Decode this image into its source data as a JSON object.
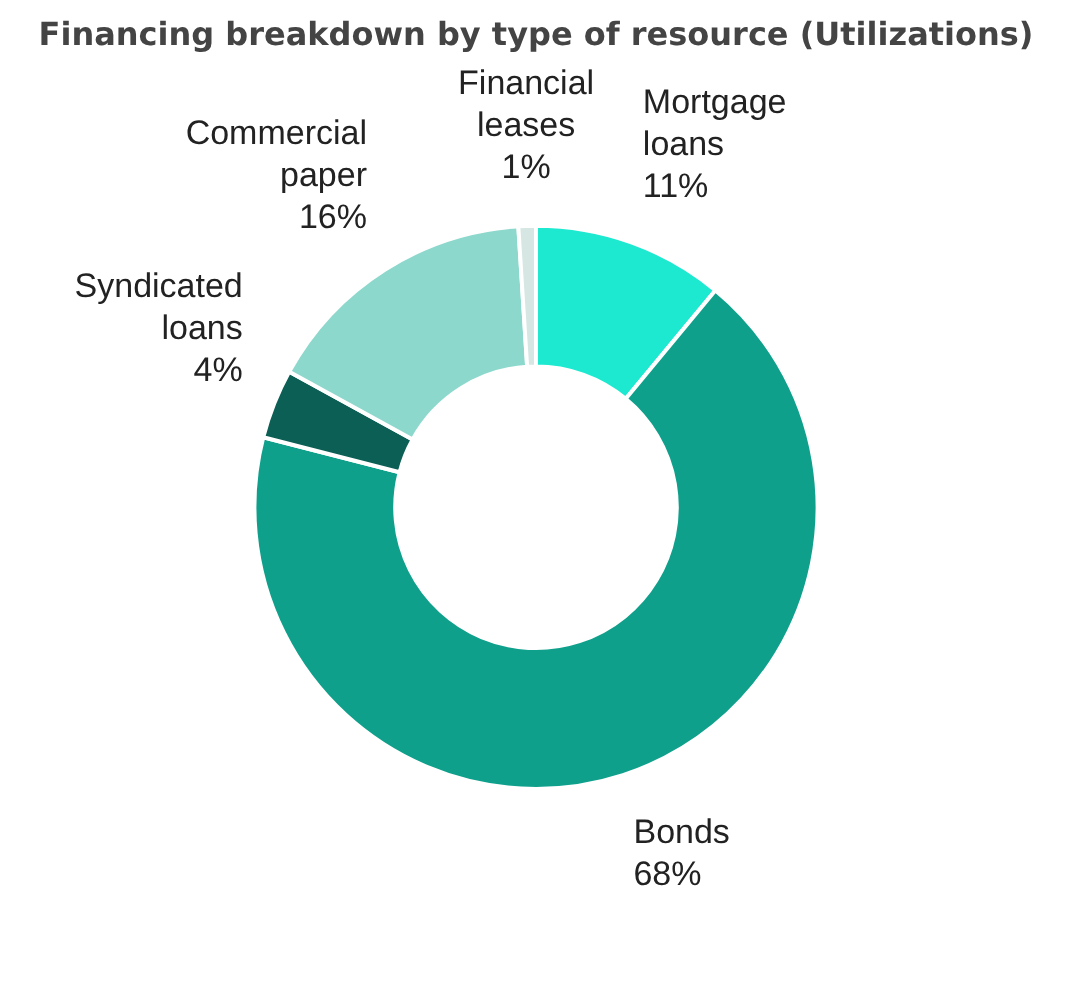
{
  "chart_data": {
    "type": "donut",
    "title": "Financing breakdown by type of resource (Utilizations)",
    "categories": [
      "Mortgage loans",
      "Bonds",
      "Syndicated loans",
      "Commercial paper",
      "Financial leases"
    ],
    "values": [
      11,
      68,
      4,
      16,
      1
    ],
    "value_labels": [
      "11%",
      "68%",
      "4%",
      "16%",
      "1%"
    ],
    "colors": [
      "#1de9d0",
      "#0fa08c",
      "#0b5f55",
      "#8dd8cc",
      "#d5e6e3"
    ]
  }
}
